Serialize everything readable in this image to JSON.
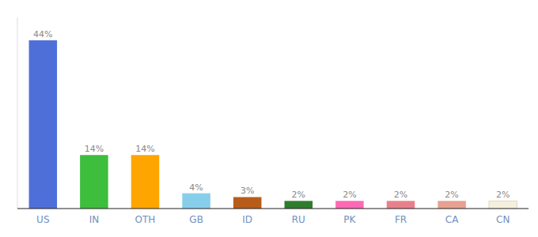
{
  "chart_data": {
    "type": "bar",
    "categories": [
      "US",
      "IN",
      "OTH",
      "GB",
      "ID",
      "RU",
      "PK",
      "FR",
      "CA",
      "CN"
    ],
    "values": [
      44,
      14,
      14,
      4,
      3,
      2,
      2,
      2,
      2,
      2
    ],
    "value_labels": [
      "44%",
      "14%",
      "14%",
      "4%",
      "3%",
      "2%",
      "2%",
      "2%",
      "2%",
      "2%"
    ],
    "colors": [
      "#4F6FD8",
      "#3DBE3D",
      "#FFA500",
      "#87CEEB",
      "#B85C1A",
      "#2E7D2E",
      "#FF69B4",
      "#E8808A",
      "#E8A090",
      "#F5F0DC"
    ],
    "ylim": [
      0,
      50
    ],
    "data_labels": true,
    "tick_labels": "x",
    "grid": false
  }
}
